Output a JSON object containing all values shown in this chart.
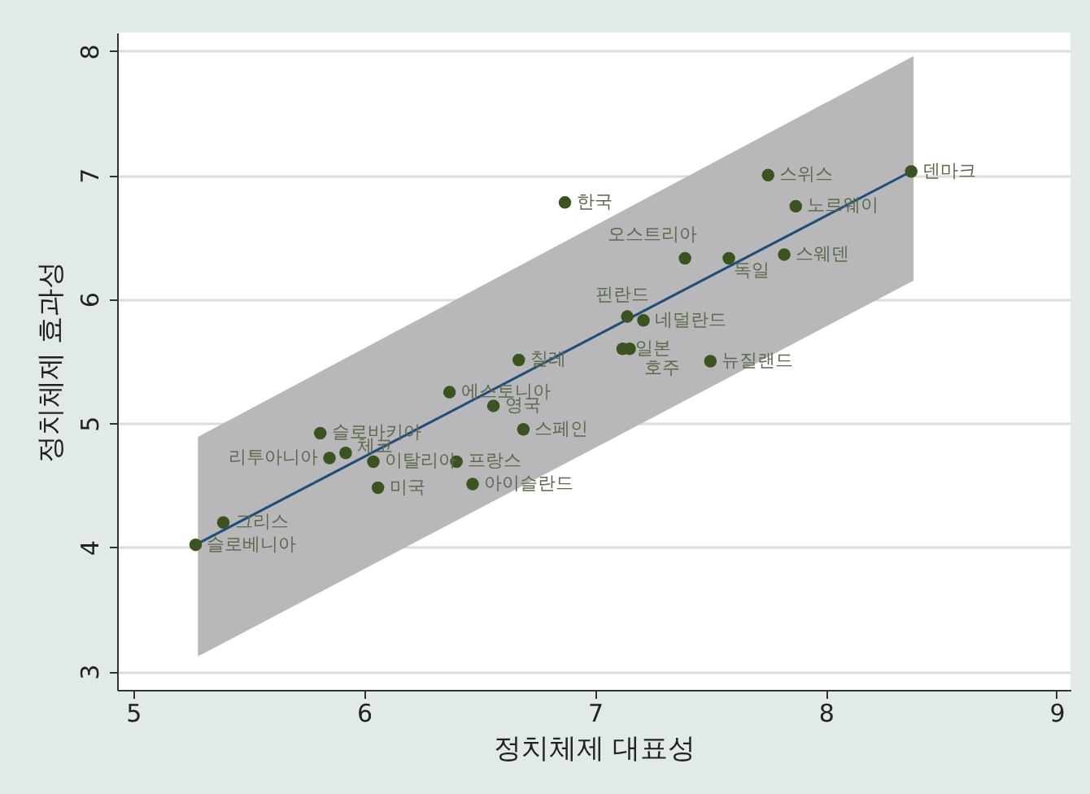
{
  "chart_data": {
    "type": "scatter",
    "xlabel": "정치체제 대표성",
    "ylabel": "정치체제 효과성",
    "xlim": [
      4.93,
      9.06
    ],
    "ylim": [
      2.85,
      8.15
    ],
    "xticks": [
      5,
      6,
      7,
      8,
      9
    ],
    "yticks": [
      3,
      4,
      5,
      6,
      7,
      8
    ],
    "grid": "y",
    "series": [
      {
        "type": "line",
        "color": "#1f4e79",
        "x": [
          5.28,
          8.38
        ],
        "values": [
          4.03,
          7.04
        ],
        "lower": [
          3.12,
          6.15
        ],
        "upper": [
          4.89,
          7.96
        ]
      },
      {
        "marker": "circle",
        "color": "#3a5320",
        "x": [
          8.37,
          7.75,
          7.87,
          6.87,
          7.39,
          7.58,
          7.82,
          7.14,
          7.21,
          7.12,
          7.15,
          7.5,
          6.67,
          6.37,
          6.56,
          6.69,
          5.81,
          5.92,
          5.85,
          6.04,
          6.4,
          6.06,
          6.47,
          5.39,
          5.27
        ],
        "values": [
          7.03,
          7.0,
          6.75,
          6.78,
          6.33,
          6.33,
          6.36,
          5.86,
          5.83,
          5.6,
          5.6,
          5.5,
          5.51,
          5.25,
          5.14,
          4.95,
          4.92,
          4.76,
          4.72,
          4.69,
          4.69,
          4.48,
          4.51,
          4.2,
          4.02
        ]
      }
    ],
    "annotations": [
      {
        "text": "덴마크",
        "x": 8.37,
        "y": 7.03
      },
      {
        "text": "스위스",
        "x": 7.75,
        "y": 7.0
      },
      {
        "text": "노르웨이",
        "x": 7.87,
        "y": 6.75
      },
      {
        "text": "한국",
        "x": 6.87,
        "y": 6.78
      },
      {
        "text": "오스트리아",
        "x": 7.39,
        "y": 6.33
      },
      {
        "text": "독일",
        "x": 7.58,
        "y": 6.33
      },
      {
        "text": "스웨덴",
        "x": 7.82,
        "y": 6.36
      },
      {
        "text": "핀란드",
        "x": 7.14,
        "y": 5.86
      },
      {
        "text": "네덜란드",
        "x": 7.21,
        "y": 5.83
      },
      {
        "text": "일본",
        "x": 7.12,
        "y": 5.6
      },
      {
        "text": "호주",
        "x": 7.15,
        "y": 5.6
      },
      {
        "text": "뉴질랜드",
        "x": 7.5,
        "y": 5.5
      },
      {
        "text": "칠레",
        "x": 6.67,
        "y": 5.51
      },
      {
        "text": "에스토니아",
        "x": 6.37,
        "y": 5.25
      },
      {
        "text": "영국",
        "x": 6.56,
        "y": 5.14
      },
      {
        "text": "스페인",
        "x": 6.69,
        "y": 4.95
      },
      {
        "text": "슬로바키아",
        "x": 5.81,
        "y": 4.92
      },
      {
        "text": "체코",
        "x": 5.92,
        "y": 4.76
      },
      {
        "text": "리투아니아",
        "x": 5.85,
        "y": 4.72
      },
      {
        "text": "이탈리아",
        "x": 6.04,
        "y": 4.69
      },
      {
        "text": "프랑스",
        "x": 6.4,
        "y": 4.69
      },
      {
        "text": "미국",
        "x": 6.06,
        "y": 4.48
      },
      {
        "text": "아이슬란드",
        "x": 6.47,
        "y": 4.51
      },
      {
        "text": "그리스",
        "x": 5.39,
        "y": 4.2
      },
      {
        "text": "슬로베니아",
        "x": 5.27,
        "y": 4.02
      }
    ]
  }
}
